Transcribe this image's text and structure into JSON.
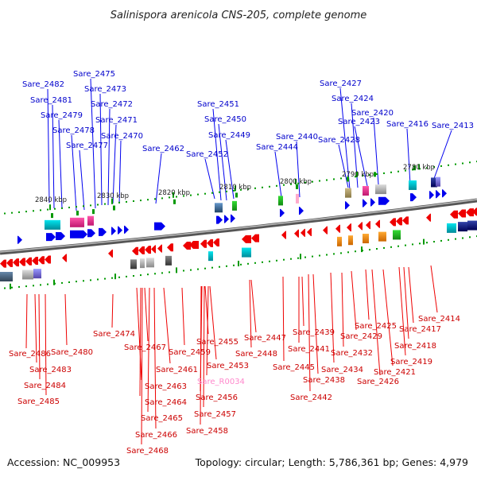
{
  "title": "Salinispora arenicola CNS-205, complete genome",
  "footer": {
    "accession": "Accession: NC_009953",
    "summary": "Topology: circular; Length: 5,786,361 bp; Genes: 4,979"
  },
  "colors": {
    "forward": "#0000ee",
    "reverse": "#ee0000",
    "rna": "#ff99cc",
    "backbone": "#777777",
    "tick": "#009900"
  },
  "kbp_markers": [
    {
      "label": "2840 kbp"
    },
    {
      "label": "2830 kbp"
    },
    {
      "label": "2820 kbp"
    },
    {
      "label": "2810 kbp"
    },
    {
      "label": "2800 kbp"
    },
    {
      "label": "2790 kbp"
    },
    {
      "label": "2780 kbp"
    }
  ],
  "top_labels": [
    {
      "text": "Sare_2482"
    },
    {
      "text": "Sare_2481"
    },
    {
      "text": "Sare_2479"
    },
    {
      "text": "Sare_2478"
    },
    {
      "text": "Sare_2477"
    },
    {
      "text": "Sare_2475"
    },
    {
      "text": "Sare_2473"
    },
    {
      "text": "Sare_2472"
    },
    {
      "text": "Sare_2471"
    },
    {
      "text": "Sare_2470"
    },
    {
      "text": "Sare_2462"
    },
    {
      "text": "Sare_2451"
    },
    {
      "text": "Sare_2450"
    },
    {
      "text": "Sare_2449"
    },
    {
      "text": "Sare_2452"
    },
    {
      "text": "Sare_2444"
    },
    {
      "text": "Sare_2440"
    },
    {
      "text": "Sare_2427"
    },
    {
      "text": "Sare_2424"
    },
    {
      "text": "Sare_2420"
    },
    {
      "text": "Sare_2423"
    },
    {
      "text": "Sare_2428"
    },
    {
      "text": "Sare_2416"
    },
    {
      "text": "Sare_2413"
    }
  ],
  "bottom_labels": [
    {
      "text": "Sare_2474"
    },
    {
      "text": "Sare_2486"
    },
    {
      "text": "Sare_2480"
    },
    {
      "text": "Sare_2483"
    },
    {
      "text": "Sare_2484"
    },
    {
      "text": "Sare_2485"
    },
    {
      "text": "Sare_2467"
    },
    {
      "text": "Sare_2459"
    },
    {
      "text": "Sare_2455"
    },
    {
      "text": "Sare_2461"
    },
    {
      "text": "Sare_2453"
    },
    {
      "text": "Sare_2463"
    },
    {
      "text": "Sare_R0034"
    },
    {
      "text": "Sare_2464"
    },
    {
      "text": "Sare_2456"
    },
    {
      "text": "Sare_2465"
    },
    {
      "text": "Sare_2457"
    },
    {
      "text": "Sare_2466"
    },
    {
      "text": "Sare_2458"
    },
    {
      "text": "Sare_2468"
    },
    {
      "text": "Sare_2447"
    },
    {
      "text": "Sare_2448"
    },
    {
      "text": "Sare_2439"
    },
    {
      "text": "Sare_2441"
    },
    {
      "text": "Sare_2445"
    },
    {
      "text": "Sare_2438"
    },
    {
      "text": "Sare_2442"
    },
    {
      "text": "Sare_2434"
    },
    {
      "text": "Sare_2432"
    },
    {
      "text": "Sare_2429"
    },
    {
      "text": "Sare_2425"
    },
    {
      "text": "Sare_2426"
    },
    {
      "text": "Sare_2421"
    },
    {
      "text": "Sare_2417"
    },
    {
      "text": "Sare_2418"
    },
    {
      "text": "Sare_2419"
    },
    {
      "text": "Sare_2414"
    }
  ]
}
